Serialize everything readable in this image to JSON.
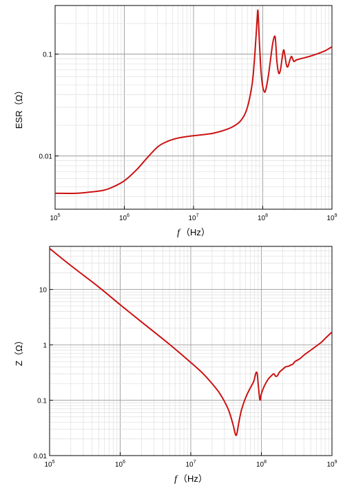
{
  "chart_data": [
    {
      "type": "line",
      "title": "",
      "xlabel_var": "f",
      "xlabel_unit": "（Hz）",
      "ylabel": "ESR（Ω）",
      "xscale": "log",
      "yscale": "log",
      "xlim": [
        100000,
        1000000000
      ],
      "ylim": [
        0.003,
        0.3
      ],
      "grid": true,
      "line_color": "#cc1111",
      "x_ticks": [
        {
          "base": "10",
          "exp": "5"
        },
        {
          "base": "10",
          "exp": "6"
        },
        {
          "base": "10",
          "exp": "7"
        },
        {
          "base": "10",
          "exp": "8"
        },
        {
          "base": "10",
          "exp": "9"
        }
      ],
      "y_ticks": [
        {
          "value": 0.01,
          "label": "0.01"
        },
        {
          "value": 0.1,
          "label": "0.1"
        }
      ],
      "series": [
        {
          "x": [
            100000,
            200000,
            300000,
            500000,
            700000,
            1000000,
            1500000,
            2000000,
            3000000,
            4000000,
            5000000,
            6000000,
            8000000,
            10000000,
            15000000,
            20000000,
            30000000,
            40000000,
            50000000,
            60000000,
            70000000,
            75000000,
            80000000,
            83000000,
            85000000,
            87000000,
            90000000,
            95000000,
            100000000,
            105000000,
            110000000,
            120000000,
            130000000,
            140000000,
            150000000,
            155000000,
            160000000,
            170000000,
            180000000,
            190000000,
            200000000,
            210000000,
            220000000,
            230000000,
            240000000,
            250000000,
            260000000,
            270000000,
            280000000,
            290000000,
            300000000,
            350000000,
            400000000,
            500000000,
            600000000,
            700000000,
            800000000,
            900000000,
            1000000000
          ],
          "y": [
            0.0043,
            0.0043,
            0.0044,
            0.0046,
            0.005,
            0.0057,
            0.0073,
            0.0091,
            0.0122,
            0.0137,
            0.0145,
            0.015,
            0.0155,
            0.0158,
            0.0163,
            0.0168,
            0.0182,
            0.02,
            0.023,
            0.03,
            0.05,
            0.08,
            0.15,
            0.22,
            0.27,
            0.2,
            0.12,
            0.065,
            0.048,
            0.043,
            0.044,
            0.06,
            0.09,
            0.13,
            0.15,
            0.12,
            0.085,
            0.065,
            0.07,
            0.09,
            0.11,
            0.095,
            0.078,
            0.075,
            0.082,
            0.09,
            0.095,
            0.09,
            0.085,
            0.085,
            0.087,
            0.09,
            0.092,
            0.096,
            0.1,
            0.104,
            0.108,
            0.113,
            0.118
          ]
        }
      ]
    },
    {
      "type": "line",
      "title": "",
      "xlabel_var": "f",
      "xlabel_unit": "（Hz）",
      "ylabel": "Z（Ω）",
      "xscale": "log",
      "yscale": "log",
      "xlim": [
        100000,
        1000000000
      ],
      "ylim": [
        0.01,
        60
      ],
      "grid": true,
      "line_color": "#cc1111",
      "x_ticks": [
        {
          "base": "10",
          "exp": "5"
        },
        {
          "base": "10",
          "exp": "6"
        },
        {
          "base": "10",
          "exp": "7"
        },
        {
          "base": "10",
          "exp": "8"
        },
        {
          "base": "10",
          "exp": "9"
        }
      ],
      "y_ticks": [
        {
          "value": 0.01,
          "label": "0.01"
        },
        {
          "value": 0.1,
          "label": "0.1"
        },
        {
          "value": 1,
          "label": "1"
        },
        {
          "value": 10,
          "label": "10"
        }
      ],
      "series": [
        {
          "x": [
            100000,
            200000,
            500000,
            1000000,
            2000000,
            5000000,
            10000000,
            15000000,
            20000000,
            25000000,
            30000000,
            35000000,
            40000000,
            43000000,
            45000000,
            48000000,
            52000000,
            58000000,
            65000000,
            72000000,
            78000000,
            83000000,
            86000000,
            88000000,
            90000000,
            93000000,
            96000000,
            100000000,
            110000000,
            125000000,
            140000000,
            150000000,
            160000000,
            170000000,
            180000000,
            200000000,
            220000000,
            240000000,
            260000000,
            280000000,
            300000000,
            350000000,
            400000000,
            500000000,
            600000000,
            700000000,
            800000000,
            900000000,
            1000000000
          ],
          "y": [
            55,
            27,
            11,
            5.3,
            2.6,
            1.02,
            0.48,
            0.3,
            0.2,
            0.14,
            0.095,
            0.062,
            0.035,
            0.024,
            0.025,
            0.04,
            0.065,
            0.1,
            0.14,
            0.18,
            0.22,
            0.3,
            0.32,
            0.28,
            0.2,
            0.13,
            0.1,
            0.13,
            0.18,
            0.24,
            0.28,
            0.3,
            0.27,
            0.28,
            0.32,
            0.36,
            0.4,
            0.41,
            0.43,
            0.45,
            0.5,
            0.56,
            0.65,
            0.8,
            0.95,
            1.1,
            1.3,
            1.5,
            1.7
          ]
        }
      ]
    }
  ]
}
